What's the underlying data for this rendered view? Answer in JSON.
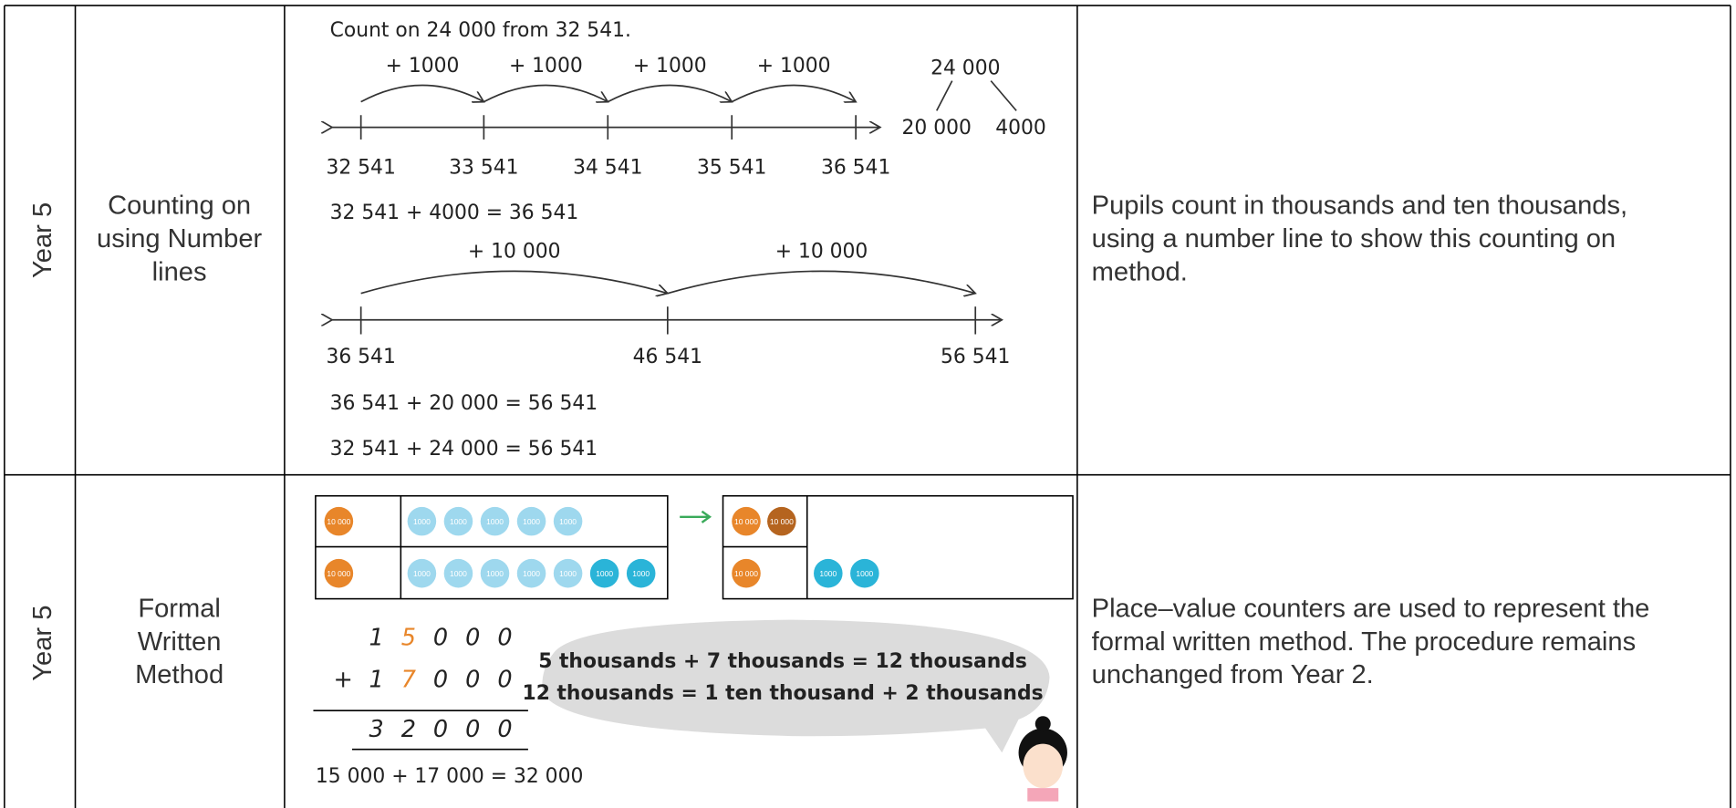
{
  "table": {
    "rows": [
      {
        "year": "Year 5",
        "method": [
          "Counting on",
          "using Number",
          "lines"
        ],
        "description": [
          "Pupils count in thousands and ten thousands,",
          "using a number line to show this counting on",
          "method."
        ],
        "illustration": {
          "prompt": "Count on 24 000 from 32 541.",
          "jumps": [
            "+ 1000",
            "+ 1000",
            "+ 1000",
            "+ 1000"
          ],
          "ticks": [
            "32 541",
            "33 541",
            "34 541",
            "35 541",
            "36 541"
          ],
          "partition": {
            "whole": "24 000",
            "parts": [
              "20 000",
              "4000"
            ]
          },
          "equation": "32 541 + 4000 = 36 541",
          "jumps2": [
            "+ 10 000",
            "+ 10 000"
          ],
          "ticks2": [
            "36 541",
            "46 541",
            "56 541"
          ],
          "equation2": "36 541 + 20 000 = 56 541",
          "equation3": "32 541 + 24 000 = 56 541"
        }
      },
      {
        "year": "Year 5",
        "method": [
          "Formal",
          "Written",
          "Method"
        ],
        "description": [
          "Place–value counters are used to represent the",
          "formal written method. The procedure remains",
          "unchanged from Year 2."
        ],
        "illustration": {
          "ten_thousand_label": "10 000",
          "thousand_label": "1000",
          "before": {
            "top": {
              "ten_thousands": 1,
              "thousands": 5
            },
            "bottom": {
              "ten_thousands": 1,
              "thousands": 7
            }
          },
          "after": {
            "top": {
              "ten_thousands": 2,
              "thousands": 0
            },
            "bottom": {
              "ten_thousands": 1,
              "thousands": 2
            }
          },
          "addend1": [
            "1",
            "5",
            "0",
            "0",
            "0"
          ],
          "operator": "+",
          "addend2": [
            "1",
            "7",
            "0",
            "0",
            "0"
          ],
          "result": [
            "3",
            "2",
            "0",
            "0",
            "0"
          ],
          "speech": [
            "5 thousands + 7 thousands = 12 thousands",
            "12 thousands = 1 ten thousand + 2 thousands"
          ],
          "equation": "15 000 + 17 000 = 32 000"
        }
      }
    ]
  }
}
